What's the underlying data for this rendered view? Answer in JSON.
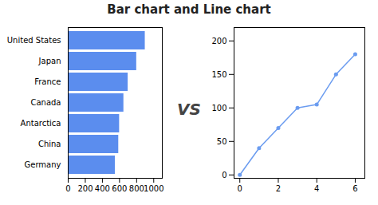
{
  "title": "Bar chart and Line chart",
  "annotations": [
    "VS"
  ],
  "chart_data": [
    {
      "type": "bar",
      "orientation": "horizontal",
      "categories": [
        "Germany",
        "China",
        "Antarctica",
        "Canada",
        "France",
        "Japan",
        "United States"
      ],
      "values": [
        550,
        590,
        600,
        650,
        700,
        800,
        900
      ],
      "color": "#5b8dee",
      "xlim": [
        0,
        1100
      ],
      "xticks": [
        0,
        200,
        400,
        600,
        800,
        1000
      ],
      "grid": false
    },
    {
      "type": "line",
      "x": [
        0,
        1,
        2,
        3,
        4,
        5,
        6
      ],
      "values": [
        0,
        40,
        70,
        100,
        105,
        150,
        180
      ],
      "color": "#6b9cf0",
      "marker": "circle",
      "xlim": [
        -0.3,
        6.5
      ],
      "xticks": [
        0,
        2,
        4,
        6
      ],
      "ylim": [
        -5,
        220
      ],
      "yticks": [
        0,
        50,
        100,
        150,
        200
      ],
      "grid": false
    }
  ]
}
